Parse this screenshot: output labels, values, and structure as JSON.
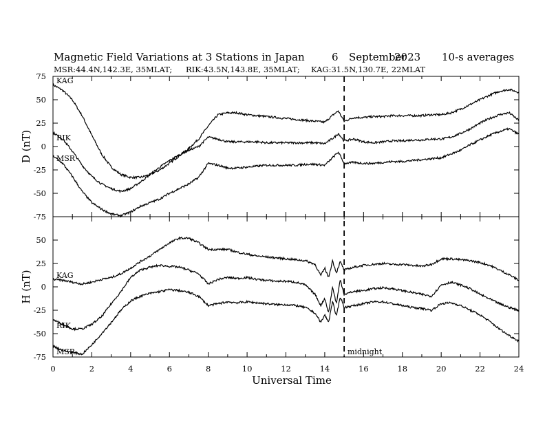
{
  "chart_data": [
    {
      "type": "line",
      "title": "Magnetic Field Variations at 3 Stations in Japan",
      "date_day": "6",
      "date_month": "September",
      "date_year": "2023",
      "averaging": "10-s averages",
      "subtitle_msr": "MSR:44.4N,142.3E, 35MLAT;",
      "subtitle_rik": "RIK:43.5N,143.8E, 35MLAT;",
      "subtitle_kag": "KAG:31.5N,130.7E, 22MLAT",
      "ylabel": "D (nT)",
      "ylim": [
        -75,
        75
      ],
      "yticks": [
        "75",
        "50",
        "25",
        "0",
        "-25",
        "-50",
        "-75"
      ],
      "xlim": [
        0,
        24
      ],
      "midnight_ut": 15,
      "series": [
        {
          "name": "KAG",
          "x": [
            0,
            0.5,
            1,
            1.5,
            2,
            2.5,
            3,
            3.5,
            4,
            4.5,
            5,
            5.5,
            6,
            6.5,
            7,
            7.5,
            8,
            8.5,
            9,
            9.5,
            10,
            10.5,
            11,
            11.5,
            12,
            12.5,
            13,
            13.5,
            14,
            14.5,
            14.7,
            15,
            15.5,
            16,
            16.5,
            17,
            17.5,
            18,
            18.5,
            19,
            19.5,
            20,
            20.5,
            21,
            21.5,
            22,
            22.5,
            23,
            23.5,
            24
          ],
          "values": [
            66,
            60,
            50,
            33,
            12,
            -8,
            -22,
            -30,
            -33,
            -33,
            -30,
            -25,
            -18,
            -10,
            -2,
            8,
            22,
            34,
            36,
            36,
            34,
            33,
            32,
            31,
            30,
            29,
            28,
            27,
            26,
            35,
            38,
            27,
            31,
            31,
            32,
            32,
            33,
            33,
            33,
            33,
            34,
            34,
            36,
            40,
            45,
            50,
            55,
            59,
            61,
            58
          ]
        },
        {
          "name": "RIK",
          "x": [
            0,
            0.5,
            1,
            1.5,
            2,
            2.5,
            3,
            3.5,
            4,
            4.5,
            5,
            5.5,
            6,
            6.5,
            7,
            7.5,
            8,
            8.5,
            9,
            9.5,
            10,
            10.5,
            11,
            11.5,
            12,
            12.5,
            13,
            13.5,
            14,
            14.5,
            14.7,
            15,
            15.5,
            16,
            16.5,
            17,
            17.5,
            18,
            18.5,
            19,
            19.5,
            20,
            20.5,
            21,
            21.5,
            22,
            22.5,
            23,
            23.5,
            24
          ],
          "values": [
            15,
            8,
            -5,
            -20,
            -32,
            -40,
            -45,
            -48,
            -45,
            -38,
            -30,
            -22,
            -15,
            -9,
            -4,
            0,
            10,
            8,
            5,
            5,
            5,
            5,
            4,
            4,
            4,
            4,
            4,
            4,
            3,
            10,
            14,
            6,
            8,
            5,
            4,
            5,
            6,
            6,
            7,
            7,
            8,
            8,
            10,
            14,
            19,
            25,
            30,
            34,
            36,
            28
          ]
        },
        {
          "name": "MSR",
          "x": [
            0,
            0.5,
            1,
            1.5,
            2,
            2.5,
            3,
            3.5,
            4,
            4.5,
            5,
            5.5,
            6,
            6.5,
            7,
            7.5,
            8,
            8.5,
            9,
            9.5,
            10,
            10.5,
            11,
            11.5,
            12,
            12.5,
            13,
            13.5,
            14,
            14.5,
            14.7,
            15,
            15.5,
            16,
            16.5,
            17,
            17.5,
            18,
            18.5,
            19,
            19.5,
            20,
            20.5,
            21,
            21.5,
            22,
            22.5,
            23,
            23.5,
            24
          ],
          "values": [
            -10,
            -18,
            -32,
            -48,
            -60,
            -67,
            -72,
            -74,
            -70,
            -64,
            -60,
            -56,
            -50,
            -45,
            -40,
            -33,
            -18,
            -20,
            -23,
            -23,
            -22,
            -21,
            -20,
            -20,
            -20,
            -20,
            -19,
            -19,
            -20,
            -10,
            -6,
            -18,
            -17,
            -18,
            -18,
            -17,
            -16,
            -16,
            -15,
            -14,
            -13,
            -12,
            -8,
            -4,
            2,
            7,
            12,
            16,
            19,
            13
          ]
        }
      ]
    },
    {
      "type": "line",
      "ylabel": "H (nT)",
      "xlabel": "Universal Time",
      "ylim": [
        -75,
        75
      ],
      "yticks": [
        "50",
        "25",
        "0",
        "-25",
        "-50",
        "-75"
      ],
      "xlim": [
        0,
        24
      ],
      "xticks": [
        "0",
        "2",
        "4",
        "6",
        "8",
        "10",
        "12",
        "14",
        "16",
        "18",
        "20",
        "22",
        "24"
      ],
      "midnight_label": "midnight",
      "series": [
        {
          "name": "KAG",
          "x": [
            0,
            0.5,
            1,
            1.5,
            2,
            2.5,
            3,
            3.5,
            4,
            4.5,
            5,
            5.5,
            6,
            6.5,
            7,
            7.5,
            8,
            8.5,
            9,
            9.5,
            10,
            10.5,
            11,
            11.5,
            12,
            12.5,
            13,
            13.5,
            13.8,
            14,
            14.2,
            14.4,
            14.6,
            14.8,
            15,
            15.5,
            16,
            16.5,
            17,
            17.5,
            18,
            18.5,
            19,
            19.5,
            20,
            20.5,
            21,
            21.5,
            22,
            22.5,
            23,
            23.5,
            24
          ],
          "values": [
            8,
            7,
            5,
            3,
            5,
            8,
            10,
            14,
            20,
            27,
            33,
            40,
            47,
            52,
            52,
            47,
            40,
            40,
            40,
            37,
            35,
            33,
            32,
            31,
            30,
            29,
            28,
            24,
            12,
            20,
            10,
            28,
            15,
            27,
            18,
            21,
            23,
            24,
            25,
            24,
            24,
            23,
            22,
            24,
            30,
            30,
            29,
            28,
            26,
            23,
            18,
            13,
            7
          ]
        },
        {
          "name": "RIK",
          "x": [
            0,
            0.5,
            1,
            1.5,
            2,
            2.5,
            3,
            3.5,
            4,
            4.5,
            5,
            5.5,
            6,
            6.5,
            7,
            7.5,
            8,
            8.5,
            9,
            9.5,
            10,
            10.5,
            11,
            11.5,
            12,
            12.5,
            13,
            13.5,
            13.8,
            14,
            14.2,
            14.4,
            14.6,
            14.8,
            15,
            15.5,
            16,
            16.5,
            17,
            17.5,
            18,
            18.5,
            19,
            19.5,
            20,
            20.5,
            21,
            21.5,
            22,
            22.5,
            23,
            23.5,
            24
          ],
          "values": [
            -35,
            -40,
            -45,
            -45,
            -40,
            -32,
            -18,
            -5,
            10,
            18,
            21,
            23,
            22,
            21,
            18,
            14,
            3,
            8,
            10,
            9,
            10,
            8,
            7,
            6,
            6,
            5,
            2,
            -8,
            -20,
            -12,
            -28,
            0,
            -18,
            8,
            -8,
            -5,
            -4,
            -2,
            -1,
            -2,
            -4,
            -6,
            -8,
            -10,
            2,
            5,
            2,
            -2,
            -8,
            -13,
            -18,
            -22,
            -25
          ]
        },
        {
          "name": "MSR",
          "x": [
            0,
            0.5,
            1,
            1.5,
            2,
            2.5,
            3,
            3.5,
            4,
            4.5,
            5,
            5.5,
            6,
            6.5,
            7,
            7.5,
            8,
            8.5,
            9,
            9.5,
            10,
            10.5,
            11,
            11.5,
            12,
            12.5,
            13,
            13.5,
            13.8,
            14,
            14.2,
            14.4,
            14.6,
            14.8,
            15,
            15.5,
            16,
            16.5,
            17,
            17.5,
            18,
            18.5,
            19,
            19.5,
            20,
            20.5,
            21,
            21.5,
            22,
            22.5,
            23,
            23.5,
            24
          ],
          "values": [
            -63,
            -68,
            -70,
            -72,
            -62,
            -50,
            -38,
            -25,
            -15,
            -10,
            -7,
            -5,
            -3,
            -4,
            -6,
            -10,
            -20,
            -18,
            -16,
            -17,
            -16,
            -17,
            -18,
            -19,
            -19,
            -20,
            -22,
            -28,
            -38,
            -30,
            -38,
            -15,
            -32,
            -10,
            -22,
            -20,
            -18,
            -16,
            -16,
            -18,
            -20,
            -22,
            -23,
            -25,
            -18,
            -17,
            -20,
            -25,
            -30,
            -37,
            -45,
            -52,
            -58
          ]
        }
      ]
    }
  ]
}
